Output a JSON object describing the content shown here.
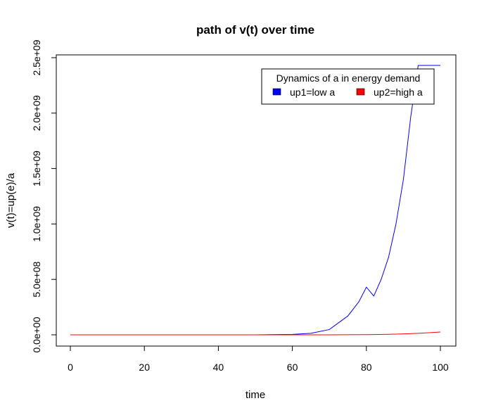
{
  "chart_data": {
    "type": "line",
    "title": "path of v(t) over time",
    "xlabel": "time",
    "ylabel": "v(t)=up(e)/a",
    "xlim": [
      0,
      100
    ],
    "ylim": [
      0,
      2500000000
    ],
    "x_ticks": [
      0,
      20,
      40,
      60,
      80,
      100
    ],
    "x_tick_labels": [
      "0",
      "20",
      "40",
      "60",
      "80",
      "100"
    ],
    "y_ticks": [
      0,
      500000000,
      1000000000,
      1500000000,
      2000000000,
      2500000000
    ],
    "y_tick_labels": [
      "0.0e+00",
      "5.0e+08",
      "1.0e+09",
      "1.5e+09",
      "2.0e+09",
      "2.5e+09"
    ],
    "grid": false,
    "legend": {
      "title": "Dynamics of a in energy demand",
      "placement": "top-right",
      "entries": [
        {
          "label": "up1=low a",
          "color": "#0000ff"
        },
        {
          "label": "up2=high a",
          "color": "#ff0000"
        }
      ]
    },
    "series": [
      {
        "name": "up1=low a",
        "color": "#0000ff",
        "x": [
          0,
          10,
          20,
          30,
          40,
          50,
          60,
          65,
          70,
          75,
          78,
          80,
          82,
          84,
          86,
          88,
          90,
          92,
          94,
          96,
          98,
          100
        ],
        "values": [
          1,
          12,
          150,
          1900,
          24000,
          300000,
          3800000,
          13500000,
          48000000,
          170000000,
          300000000,
          430000000,
          350000000,
          500000000,
          700000000,
          1000000000,
          1400000000,
          1970000000,
          2430000000,
          2430000000,
          2430000000,
          2430000000
        ]
      },
      {
        "name": "up2=high a",
        "color": "#ff0000",
        "x": [
          0,
          10,
          20,
          30,
          40,
          50,
          60,
          70,
          80,
          85,
          90,
          95,
          100
        ],
        "values": [
          0,
          0,
          0,
          0,
          0,
          0,
          0,
          300000,
          1900000,
          4000000,
          8000000,
          15000000,
          25000000
        ]
      }
    ]
  }
}
